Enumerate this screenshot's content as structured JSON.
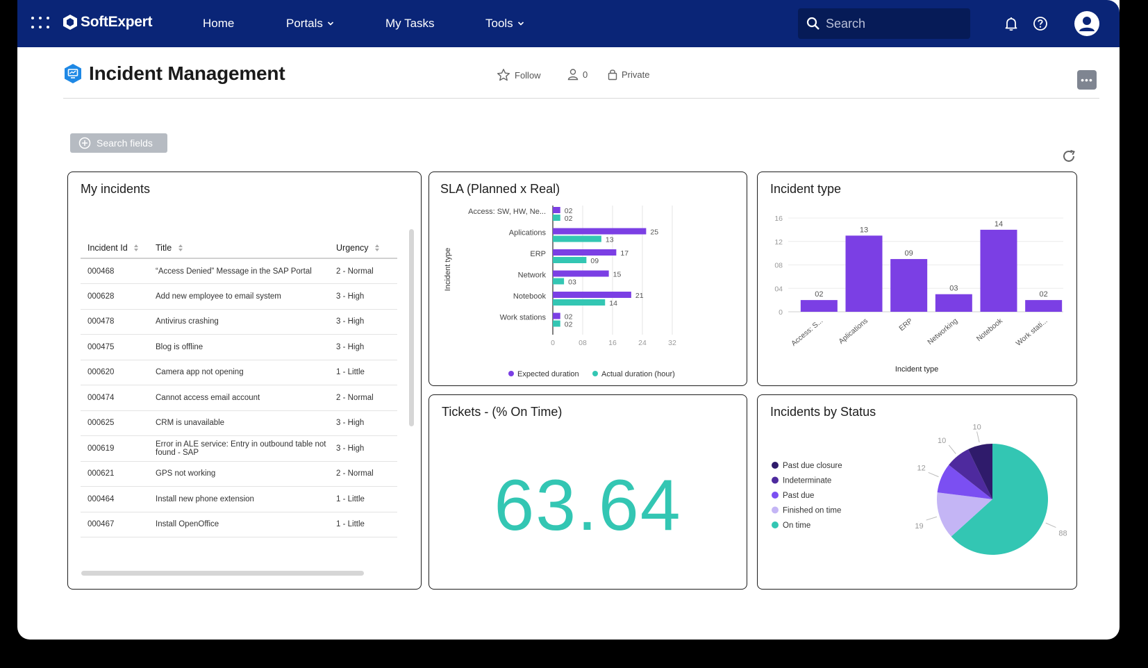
{
  "topbar": {
    "brand": "SoftExpert",
    "nav": [
      {
        "label": "Home"
      },
      {
        "label": "Portals"
      },
      {
        "label": "My Tasks"
      },
      {
        "label": "Tools"
      }
    ],
    "search_placeholder": "Search"
  },
  "page": {
    "title": "Incident Management",
    "follow_label": "Follow",
    "followers_count": "0",
    "privacy_label": "Private",
    "more_label": "•••",
    "search_fields_label": "Search fields"
  },
  "my_incidents": {
    "title": "My incidents",
    "columns": [
      "Incident Id",
      "Title",
      "Urgency"
    ],
    "rows": [
      {
        "id": "000468",
        "title": "“Access Denied” Message in the SAP Portal",
        "urgency": "2 - Normal"
      },
      {
        "id": "000628",
        "title": "Add new employee to email system",
        "urgency": "3 - High"
      },
      {
        "id": "000478",
        "title": "Antivirus crashing",
        "urgency": "3 - High"
      },
      {
        "id": "000475",
        "title": "Blog is offline",
        "urgency": "3 - High"
      },
      {
        "id": "000620",
        "title": "Camera app not opening",
        "urgency": "1 - Little"
      },
      {
        "id": "000474",
        "title": "Cannot access email account",
        "urgency": "2 - Normal"
      },
      {
        "id": "000625",
        "title": "CRM is unavailable",
        "urgency": "3 - High"
      },
      {
        "id": "000619",
        "title": "Error in ALE service: Entry in outbound table not found - SAP",
        "urgency": "3 - High"
      },
      {
        "id": "000621",
        "title": "GPS not working",
        "urgency": "2 - Normal"
      },
      {
        "id": "000464",
        "title": "Install new phone extension",
        "urgency": "1 - Little"
      },
      {
        "id": "000467",
        "title": "Install OpenOffice",
        "urgency": "1 - Little"
      }
    ]
  },
  "chart_data": [
    {
      "type": "bar",
      "orientation": "horizontal",
      "title": "SLA (Planned x Real)",
      "ylabel": "Incident type",
      "categories": [
        "Access: SW, HW, Ne...",
        "Aplications",
        "ERP",
        "Network",
        "Notebook",
        "Work stations"
      ],
      "series": [
        {
          "name": "Expected duration",
          "values": [
            2,
            25,
            17,
            15,
            21,
            2
          ],
          "labels": [
            "02",
            "25",
            "17",
            "15",
            "21",
            "02"
          ],
          "color": "#7b3fe4"
        },
        {
          "name": "Actual duration (hour)",
          "values": [
            2,
            13,
            9,
            3,
            14,
            2
          ],
          "labels": [
            "02",
            "13",
            "09",
            "03",
            "14",
            "02"
          ],
          "color": "#33c6b3"
        }
      ],
      "xlim": [
        0,
        32
      ],
      "xticks": [
        "0",
        "08",
        "16",
        "24",
        "32"
      ],
      "grid": true,
      "legend": "bottom"
    },
    {
      "type": "bar",
      "title": "Incident type",
      "xlabel": "Incident type",
      "categories": [
        "Access: S...",
        "Aplications",
        "ERP",
        "Networking",
        "Notebook",
        "Work stati..."
      ],
      "values": [
        2,
        13,
        9,
        3,
        14,
        2
      ],
      "labels": [
        "02",
        "13",
        "09",
        "03",
        "14",
        "02"
      ],
      "ylim": [
        0,
        16
      ],
      "yticks": [
        "0",
        "04",
        "08",
        "12",
        "16"
      ],
      "color": "#7b3fe4",
      "grid": true
    },
    {
      "type": "pie",
      "title": "Incidents by Status",
      "slices": [
        {
          "name": "On time",
          "value": 88,
          "color": "#33c6b3"
        },
        {
          "name": "Finished on time",
          "value": 19,
          "color": "#c4b5f5"
        },
        {
          "name": "Past due",
          "value": 12,
          "color": "#7b4ff2"
        },
        {
          "name": "Indeterminate",
          "value": 10,
          "color": "#4e2a9e"
        },
        {
          "name": "Past due closure",
          "value": 10,
          "color": "#2f1b6b"
        }
      ],
      "legend": "left"
    }
  ],
  "tickets": {
    "title": "Tickets - (% On Time)",
    "value": "63.64"
  }
}
